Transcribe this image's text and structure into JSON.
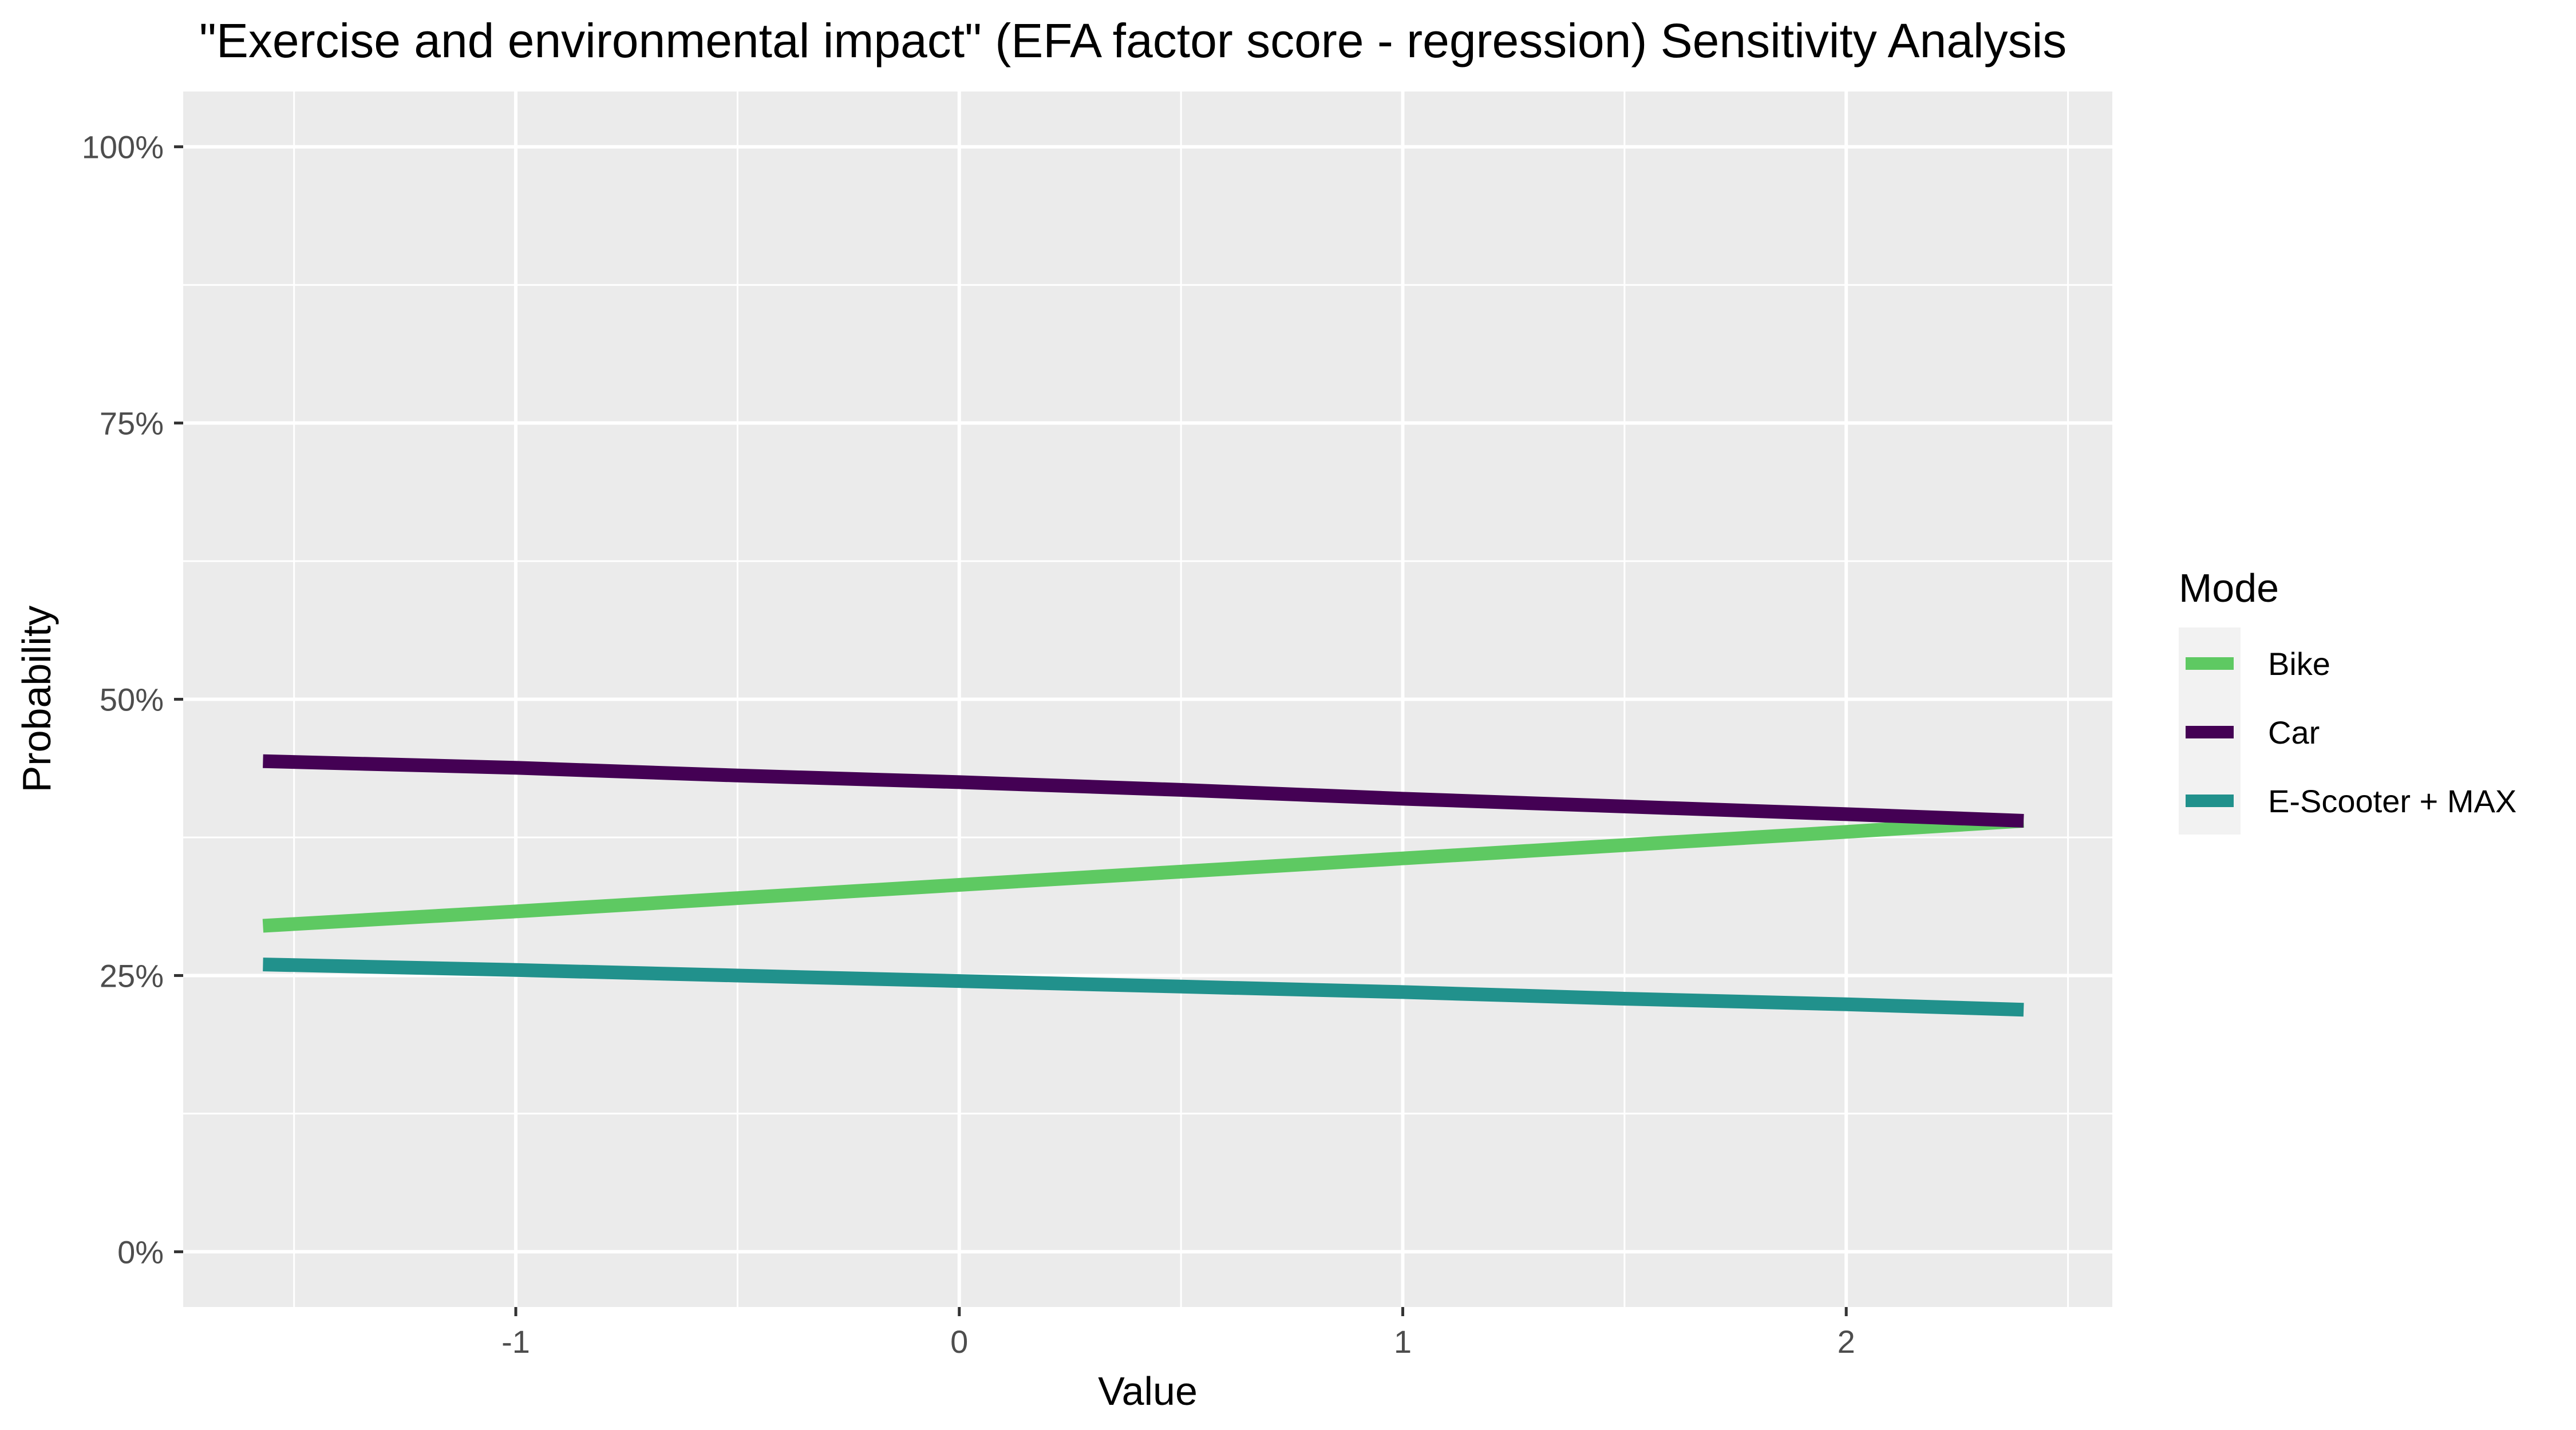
{
  "chart_data": {
    "type": "line",
    "title": "\"Exercise and environmental impact\" (EFA factor score - regression) Sensitivity Analysis",
    "xlabel": "Value",
    "ylabel": "Probability",
    "xlim": [
      -1.75,
      2.6
    ],
    "ylim": [
      -0.05,
      1.05
    ],
    "x_ticks": [
      -1,
      0,
      1,
      2
    ],
    "x_tick_labels": [
      "-1",
      "0",
      "1",
      "2"
    ],
    "x_minor_ticks": [
      -1.5,
      -0.5,
      0.5,
      1.5,
      2.5
    ],
    "y_ticks": [
      0,
      0.25,
      0.5,
      0.75,
      1.0
    ],
    "y_tick_labels": [
      "0%",
      "25%",
      "50%",
      "75%",
      "100%"
    ],
    "y_minor_ticks": [
      0.125,
      0.375,
      0.625,
      0.875
    ],
    "grid": true,
    "legend": {
      "title": "Mode",
      "position": "right"
    },
    "series": [
      {
        "name": "Bike",
        "color": "#5ec962",
        "x": [
          -1.57,
          -1.0,
          -0.5,
          0.0,
          0.5,
          1.0,
          1.5,
          2.0,
          2.4
        ],
        "y": [
          0.295,
          0.308,
          0.32,
          0.332,
          0.344,
          0.356,
          0.368,
          0.38,
          0.39
        ]
      },
      {
        "name": "Car",
        "color": "#440154",
        "x": [
          -1.57,
          -1.0,
          -0.5,
          0.0,
          0.5,
          1.0,
          1.5,
          2.0,
          2.4
        ],
        "y": [
          0.444,
          0.438,
          0.431,
          0.425,
          0.418,
          0.41,
          0.403,
          0.396,
          0.39
        ]
      },
      {
        "name": "E-Scooter + MAX",
        "color": "#21918c",
        "x": [
          -1.57,
          -1.0,
          -0.5,
          0.0,
          0.5,
          1.0,
          1.5,
          2.0,
          2.4
        ],
        "y": [
          0.26,
          0.255,
          0.25,
          0.245,
          0.24,
          0.235,
          0.229,
          0.224,
          0.219
        ]
      }
    ]
  }
}
